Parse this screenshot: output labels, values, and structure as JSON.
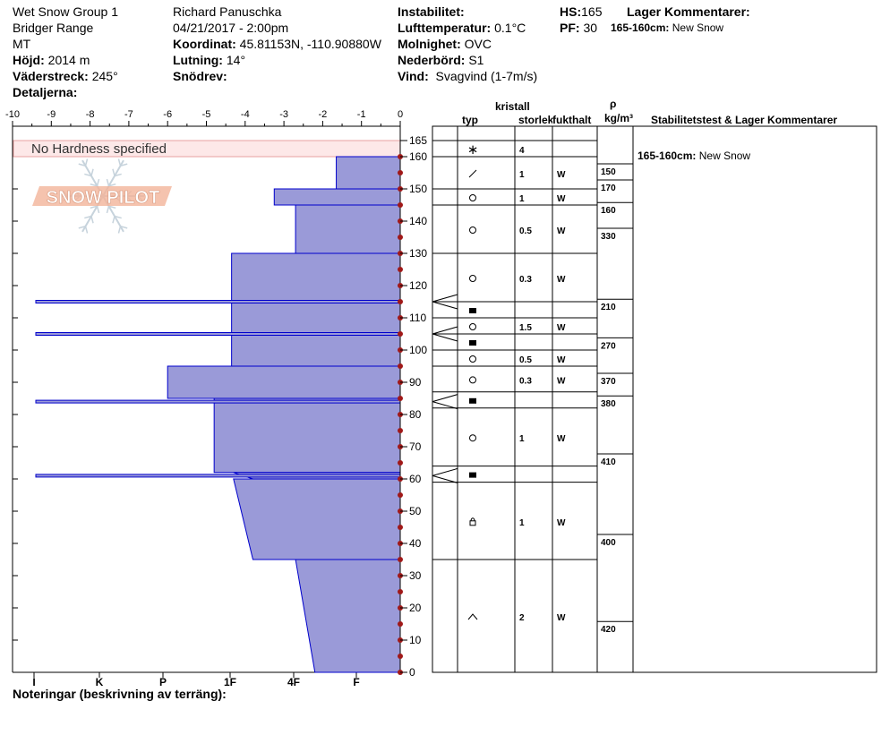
{
  "header": {
    "site": "Wet Snow Group 1",
    "range": "Bridger Range",
    "state": "MT",
    "elevation_label": "Höjd:",
    "elevation": "2014 m",
    "aspect_label": "Väderstreck:",
    "aspect": "245°",
    "details_label": "Detaljerna:",
    "observer": "Richard Panuschka",
    "datetime": "04/21/2017 - 2:00pm",
    "coord_label": "Koordinat:",
    "coord": "45.81153N, -110.90880W",
    "slope_label": "Lutning:",
    "slope": "14°",
    "drift_label": "Snödrev:",
    "instability_label": "Instabilitet:",
    "airtemp_label": "Lufttemperatur:",
    "airtemp": "0.1°C",
    "sky_label": "Molnighet:",
    "sky": "OVC",
    "precip_label": "Nederbörd:",
    "precip": "S1",
    "wind_label": "Vind:",
    "wind": "Svagvind (1-7m/s)",
    "hs_label": "HS:",
    "hs": "165",
    "pf_label": "PF:",
    "pf": "30",
    "layer_comments_label": "Lager Kommentarer:",
    "layer_comment_range": "165-160cm:",
    "layer_comment_text": "New Snow"
  },
  "columns": {
    "crystal": "kristall",
    "type": "typ",
    "size": "storlek",
    "moisture": "fukthalt",
    "rho": "ρ",
    "density_unit": "kg/m³",
    "stability": "Stabilitetstest & Lager Kommentarer"
  },
  "stability_comment": {
    "range": "165-160cm:",
    "text": "New Snow"
  },
  "notes_label": "Noteringar (beskrivning av terräng):",
  "logo_text": "SNOW PILOT",
  "no_hardness_text": "No Hardness specified",
  "chart_data": {
    "type": "bar",
    "temp_axis": {
      "range": [
        -10,
        0
      ],
      "ticks": [
        "-10",
        "-9",
        "-8",
        "-7",
        "-6",
        "-5",
        "-4",
        "-3",
        "-2",
        "-1",
        "0"
      ]
    },
    "height_axis": {
      "range": [
        0,
        165
      ],
      "ticks": [
        "165",
        "160",
        "150",
        "140",
        "130",
        "120",
        "110",
        "100",
        "90",
        "80",
        "70",
        "60",
        "50",
        "40",
        "30",
        "20",
        "10",
        "0"
      ]
    },
    "hardness_axis": [
      "I",
      "K",
      "P",
      "1F",
      "4F",
      "F"
    ],
    "hardness_profile": [
      {
        "top": 160,
        "bottom": 150,
        "width": 1.65
      },
      {
        "top": 150,
        "bottom": 145,
        "width": 3.25
      },
      {
        "top": 145,
        "bottom": 130,
        "width": 2.7
      },
      {
        "top": 130,
        "bottom": 95,
        "width": 4.35
      },
      {
        "top": 95,
        "bottom": 85,
        "width": 6.0
      },
      {
        "top": 85,
        "bottom": 62,
        "width": 4.8
      },
      {
        "top": 62,
        "bottom": 60,
        "width": 4.3,
        "bottom_width": 3.8
      },
      {
        "top": 60,
        "bottom": 35,
        "width": 4.3,
        "bottom_width": 3.8
      },
      {
        "top": 35,
        "bottom": 0,
        "width": 2.7,
        "bottom_width": 2.2
      }
    ],
    "thin_layers": [
      115,
      105,
      84,
      61
    ],
    "layers": [
      {
        "top": 165,
        "bottom": 160,
        "type": "*",
        "size": "4",
        "moisture": ""
      },
      {
        "top": 160,
        "bottom": 150,
        "type": "/",
        "size": "1",
        "moisture": "W"
      },
      {
        "top": 150,
        "bottom": 145,
        "type": "o",
        "size": "1",
        "moisture": "W"
      },
      {
        "top": 145,
        "bottom": 130,
        "type": "o",
        "size": "0.5",
        "moisture": "W"
      },
      {
        "top": 130,
        "bottom": 115,
        "type": "o",
        "size": "0.3",
        "moisture": "W"
      },
      {
        "top": 115,
        "bottom": 110,
        "type": "sq",
        "size": "",
        "moisture": ""
      },
      {
        "top": 110,
        "bottom": 105,
        "type": "o",
        "size": "1.5",
        "moisture": "W"
      },
      {
        "top": 105,
        "bottom": 100,
        "type": "sq",
        "size": "",
        "moisture": ""
      },
      {
        "top": 100,
        "bottom": 95,
        "type": "o",
        "size": "0.5",
        "moisture": "W"
      },
      {
        "top": 95,
        "bottom": 87,
        "type": "o",
        "size": "0.3",
        "moisture": "W"
      },
      {
        "top": 87,
        "bottom": 82,
        "type": "sq",
        "size": "",
        "moisture": ""
      },
      {
        "top": 82,
        "bottom": 64,
        "type": "o",
        "size": "1",
        "moisture": "W"
      },
      {
        "top": 64,
        "bottom": 59,
        "type": "sq",
        "size": "",
        "moisture": ""
      },
      {
        "top": 59,
        "bottom": 35,
        "type": "lock",
        "size": "1",
        "moisture": "W"
      },
      {
        "top": 35,
        "bottom": 0,
        "type": "cap",
        "size": "2",
        "moisture": "W"
      }
    ],
    "densities": [
      {
        "top": 160,
        "bottom": 155,
        "value": "150"
      },
      {
        "top": 155,
        "bottom": 148,
        "value": "170"
      },
      {
        "top": 148,
        "bottom": 140,
        "value": "160"
      },
      {
        "top": 140,
        "bottom": 118,
        "value": "330"
      },
      {
        "top": 118,
        "bottom": 106,
        "value": "210"
      },
      {
        "top": 106,
        "bottom": 95,
        "value": "270"
      },
      {
        "top": 95,
        "bottom": 88,
        "value": "370"
      },
      {
        "top": 88,
        "bottom": 70,
        "value": "380"
      },
      {
        "top": 70,
        "bottom": 45,
        "value": "410"
      },
      {
        "top": 45,
        "bottom": 18,
        "value": "400"
      },
      {
        "top": 18,
        "bottom": 0,
        "value": "420"
      }
    ],
    "colors": {
      "fill": "#9a9ad8",
      "edge": "#0000cc",
      "marker": "#a01818",
      "no_hardness": "#fde8e8"
    }
  }
}
